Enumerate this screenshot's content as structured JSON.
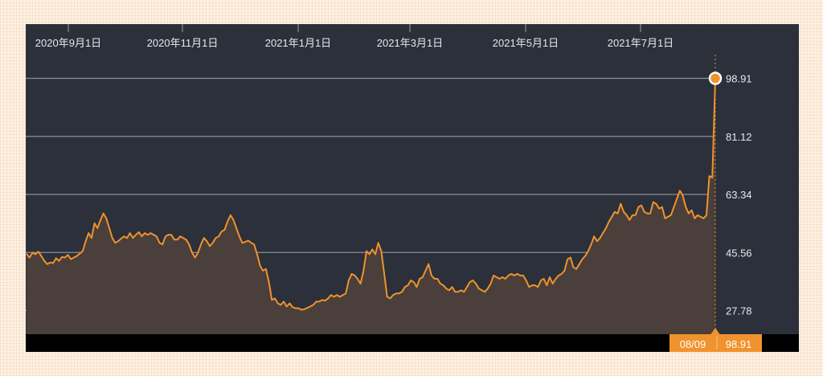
{
  "chart_data": {
    "type": "area",
    "x_tick_labels": [
      "2020年9月1日",
      "2020年11月1日",
      "2021年1月1日",
      "2021年3月1日",
      "2021年5月1日",
      "2021年7月1日"
    ],
    "y_tick_labels": [
      "98.91",
      "81.12",
      "63.34",
      "45.56",
      "27.78"
    ],
    "y_ticks": [
      98.91,
      81.12,
      63.34,
      45.56,
      27.78
    ],
    "ylim": [
      23.5,
      108
    ],
    "x_start": "2020-08-10",
    "x_end": "2021-08-09",
    "series": [
      {
        "values": [
          45.2,
          44.0,
          45.5,
          45.0,
          45.8,
          44.5,
          43.0,
          42.0,
          42.5,
          42.3,
          43.8,
          43.0,
          44.2,
          44.0,
          44.8,
          43.5,
          44.0,
          44.5,
          45.2,
          46.0,
          49.0,
          51.5,
          50.0,
          54.5,
          53.0,
          55.5,
          57.5,
          56.0,
          53.0,
          50.0,
          48.5,
          49.0,
          49.8,
          50.5,
          50.0,
          51.5,
          50.0,
          51.0,
          51.8,
          50.5,
          51.5,
          51.0,
          51.5,
          51.0,
          50.5,
          48.5,
          48.0,
          50.5,
          51.0,
          51.0,
          49.5,
          49.5,
          50.5,
          50.0,
          49.5,
          48.0,
          45.5,
          44.0,
          45.5,
          48.0,
          50.0,
          49.0,
          47.5,
          48.5,
          50.0,
          50.5,
          52.0,
          52.5,
          55.0,
          57.0,
          55.5,
          53.0,
          50.5,
          48.5,
          48.8,
          49.2,
          48.5,
          48.0,
          45.0,
          41.5,
          40.0,
          40.5,
          36.5,
          31.0,
          31.5,
          30.0,
          29.5,
          30.5,
          29.0,
          30.0,
          28.8,
          28.5,
          28.5,
          28.0,
          28.2,
          28.6,
          29.0,
          29.5,
          30.5,
          30.5,
          31.0,
          30.8,
          31.5,
          32.5,
          32.0,
          32.5,
          32.0,
          32.5,
          33.0,
          37.0,
          39.0,
          38.5,
          37.5,
          36.0,
          40.0,
          46.0,
          45.0,
          46.5,
          45.0,
          48.5,
          46.0,
          39.0,
          32.0,
          31.5,
          32.5,
          33.0,
          33.0,
          33.5,
          35.0,
          35.5,
          37.0,
          36.5,
          35.0,
          37.5,
          38.0,
          40.0,
          42.0,
          38.5,
          37.5,
          37.5,
          36.0,
          35.5,
          34.5,
          34.0,
          35.0,
          33.5,
          33.5,
          34.0,
          33.5,
          35.0,
          36.5,
          37.0,
          36.0,
          34.5,
          34.0,
          33.5,
          34.5,
          36.0,
          38.5,
          38.0,
          37.5,
          38.0,
          37.5,
          38.5,
          39.0,
          38.5,
          39.0,
          38.5,
          38.5,
          37.0,
          35.0,
          35.5,
          35.5,
          35.0,
          37.0,
          37.5,
          35.5,
          38.0,
          36.0,
          37.5,
          38.5,
          39.0,
          40.0,
          43.5,
          44.0,
          41.0,
          40.5,
          42.0,
          43.5,
          44.5,
          46.0,
          48.0,
          50.5,
          49.0,
          50.0,
          51.5,
          53.0,
          55.0,
          56.5,
          58.0,
          57.5,
          60.5,
          58.0,
          57.0,
          55.5,
          57.0,
          57.0,
          59.5,
          60.0,
          58.0,
          57.5,
          57.5,
          61.0,
          60.5,
          59.0,
          59.5,
          56.0,
          56.5,
          57.0,
          59.5,
          62.0,
          64.5,
          63.0,
          59.5,
          57.5,
          58.5,
          56.0,
          57.0,
          56.5,
          56.0,
          57.0,
          69.0,
          68.5,
          98.91
        ]
      }
    ],
    "last_point": {
      "date_label": "08/09",
      "value_label": "98.91"
    },
    "colors": {
      "line": "#f0922d",
      "fill": "#4a3f3a",
      "plot_bg": "#2b303b",
      "footer_bg": "#000000",
      "grid": "#8a8e96",
      "text": "#e6e8ec",
      "badge_bg": "#f0922d"
    }
  }
}
